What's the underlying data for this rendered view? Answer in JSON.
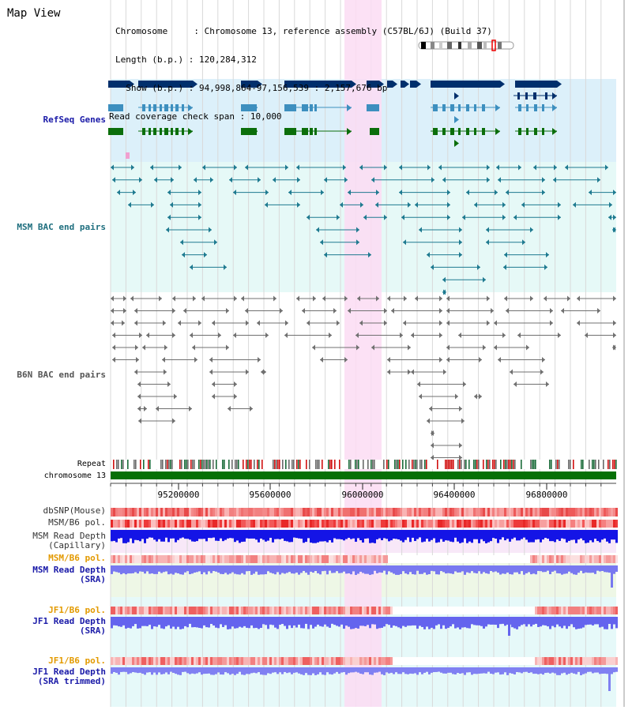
{
  "page": {
    "title": "Map View"
  },
  "info": [
    {
      "label": "Chromosome     ",
      "value": ": Chromosome 13, reference assembly (C57BL/6J) (Build 37)"
    },
    {
      "label": "Length (b.p.) ",
      "value": ": 120,284,312"
    },
    {
      "label": "  Show (b.p.) ",
      "value": ": 94,998,864-97,156,539 : 2,157,676 bp"
    },
    {
      "label": "Read coverage check span ",
      "value": ": 10,000"
    }
  ],
  "tracks": {
    "refseq": "RefSeq Genes",
    "msm_bac": "MSM BAC end pairs",
    "b6n_bac": "B6N BAC end pairs",
    "repeat": "Repeat",
    "chromosome": "chromosome 13",
    "dbsnp": "dbSNP(Mouse)",
    "msm_b6_pol": "MSM/B6 pol.",
    "msm_depth_cap": "MSM Read Depth\n(Capillary)",
    "msm_b6_pol2": "MSM/B6 pol.",
    "msm_depth_sra": "MSM Read Depth\n(SRA)",
    "jf1_b6_pol": "JF1/B6 pol.",
    "jf1_depth_sra": "JF1 Read Depth\n(SRA)",
    "jf1_b6_pol2": "JF1/B6 pol.",
    "jf1_depth_trim": "JF1 Read Depth\n(SRA trimmed)"
  },
  "axis": {
    "ticks": [
      "95200000",
      "95600000",
      "96000000",
      "96400000",
      "96800000"
    ]
  },
  "colors": {
    "gene_navy": "#002f6c",
    "gene_blue": "#3d8fbf",
    "gene_green": "#0b6e0b",
    "msm_pair": "#1e7a90",
    "b6n_pair": "#707070",
    "refseq_bg": "#dcf0fa",
    "bac_bg": "#e6f9f7",
    "highlight": "#fbdcf3",
    "label_navy": "#1a1aa8",
    "label_teal": "#1e6e7e",
    "label_orange": "#e39a00"
  }
}
